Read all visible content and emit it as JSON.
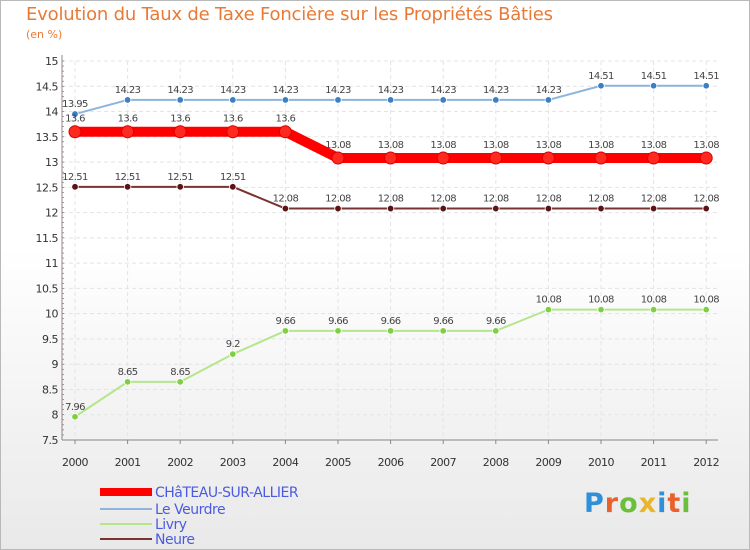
{
  "title": "Evolution du Taux de Taxe Foncière sur les Propriétés Bâties",
  "unit": "(en %)",
  "logo": {
    "text": "Proxiti",
    "colors": [
      "#2f8fd8",
      "#e8612c",
      "#6cbf3a",
      "#e8b52c",
      "#2f8fd8",
      "#e8612c",
      "#6cbf3a"
    ]
  },
  "chart_data": {
    "type": "line",
    "title": "Evolution du Taux de Taxe Foncière sur les Propriétés Bâties",
    "ylabel": "(en %)",
    "xlabel": "",
    "ylim": [
      7.5,
      15
    ],
    "yticks": [
      "7.5",
      "8",
      "8.5",
      "9",
      "9.5",
      "10",
      "10.5",
      "11",
      "11.5",
      "12",
      "12.5",
      "13",
      "13.5",
      "14",
      "14.5",
      "15"
    ],
    "categories": [
      "2000",
      "2001",
      "2002",
      "2003",
      "2004",
      "2005",
      "2006",
      "2007",
      "2008",
      "2009",
      "2010",
      "2011",
      "2012"
    ],
    "series": [
      {
        "name": "CHâTEAU-SUR-ALLIER",
        "color": "#ff0000",
        "marker": "#ff2a1f",
        "values": [
          13.6,
          13.6,
          13.6,
          13.6,
          13.6,
          13.08,
          13.08,
          13.08,
          13.08,
          13.08,
          13.08,
          13.08,
          13.08
        ],
        "labels": [
          "13.6",
          "13.6",
          "13.6",
          "13.6",
          "13.6",
          "13.08",
          "13.08",
          "13.08",
          "13.08",
          "13.08",
          "13.08",
          "13.08",
          "13.08"
        ]
      },
      {
        "name": "Le Veurdre",
        "color": "#8cb4dc",
        "marker": "#3b7fc4",
        "values": [
          13.95,
          14.23,
          14.23,
          14.23,
          14.23,
          14.23,
          14.23,
          14.23,
          14.23,
          14.23,
          14.51,
          14.51,
          14.51
        ],
        "labels": [
          "13.95",
          "14.23",
          "14.23",
          "14.23",
          "14.23",
          "14.23",
          "14.23",
          "14.23",
          "14.23",
          "14.23",
          "14.51",
          "14.51",
          "14.51"
        ]
      },
      {
        "name": "Livry",
        "color": "#b4e68c",
        "marker": "#7fcf45",
        "values": [
          7.96,
          8.65,
          8.65,
          9.2,
          9.66,
          9.66,
          9.66,
          9.66,
          9.66,
          10.08,
          10.08,
          10.08,
          10.08
        ],
        "labels": [
          "7.96",
          "8.65",
          "8.65",
          "9.2",
          "9.66",
          "9.66",
          "9.66",
          "9.66",
          "9.66",
          "10.08",
          "10.08",
          "10.08",
          "10.08"
        ]
      },
      {
        "name": "Neure",
        "color": "#7a3333",
        "marker": "#5a1414",
        "values": [
          12.51,
          12.51,
          12.51,
          12.51,
          12.08,
          12.08,
          12.08,
          12.08,
          12.08,
          12.08,
          12.08,
          12.08,
          12.08
        ],
        "labels": [
          "12.51",
          "12.51",
          "12.51",
          "12.51",
          "12.08",
          "12.08",
          "12.08",
          "12.08",
          "12.08",
          "12.08",
          "12.08",
          "12.08",
          "12.08"
        ]
      }
    ]
  }
}
